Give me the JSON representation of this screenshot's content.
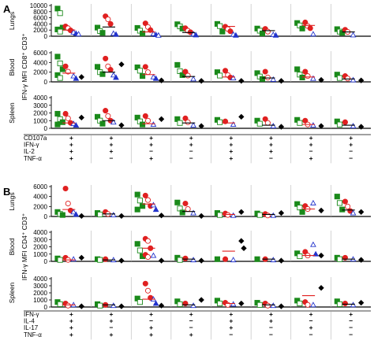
{
  "figure": {
    "panels": [
      {
        "letter": "A",
        "y_title": "IFN-γ MFI CD8⁺ CD3⁺",
        "rows": [
          {
            "label": "Lungs",
            "ylim": [
              0,
              10000
            ],
            "ticks": [
              "0",
              "2000",
              "4000",
              "6000",
              "8000",
              "10000"
            ]
          },
          {
            "label": "Blood",
            "ylim": [
              0,
              6000
            ],
            "ticks": [
              "0",
              "2000",
              "4000",
              "6000"
            ]
          },
          {
            "label": "Spleen",
            "ylim": [
              0,
              4000
            ],
            "ticks": [
              "0",
              "1000",
              "2000",
              "3000",
              "4000"
            ]
          }
        ],
        "marker_names": [
          "CD107a",
          "IFN-γ",
          "IL-2",
          "TNF-α"
        ],
        "signs": [
          [
            "+",
            "+",
            "+",
            "+",
            "+",
            "+",
            "+",
            "+"
          ],
          [
            "+",
            "+",
            "+",
            "+",
            "+",
            "+",
            "+",
            "+"
          ],
          [
            "+",
            "+",
            "−",
            "−",
            "+",
            "+",
            "−",
            "−"
          ],
          [
            "+",
            "−",
            "+",
            "−",
            "+",
            "−",
            "+",
            "−"
          ]
        ]
      },
      {
        "letter": "B",
        "y_title": "IFN-γ MFI CD4⁺ CD3⁺",
        "rows": [
          {
            "label": "Lungs",
            "ylim": [
              0,
              6000
            ],
            "ticks": [
              "0",
              "2000",
              "4000",
              "6000"
            ]
          },
          {
            "label": "Blood",
            "ylim": [
              0,
              4000
            ],
            "ticks": [
              "0",
              "1000",
              "2000",
              "3000",
              "4000"
            ]
          },
          {
            "label": "Spleen",
            "ylim": [
              0,
              4000
            ],
            "ticks": [
              "0",
              "1000",
              "2000",
              "3000",
              "4000"
            ]
          }
        ],
        "marker_names": [
          "IFN-γ",
          "IL-4",
          "IL-17",
          "TNF-α"
        ],
        "signs": [
          [
            "+",
            "+",
            "+",
            "+",
            "+",
            "+",
            "+",
            "+"
          ],
          [
            "+",
            "+",
            "−",
            "−",
            "+",
            "+",
            "−",
            "−"
          ],
          [
            "+",
            "−",
            "+",
            "−",
            "+",
            "−",
            "+",
            "−"
          ],
          [
            "+",
            "+",
            "+",
            "+",
            "−",
            "−",
            "−",
            "−"
          ]
        ]
      }
    ]
  },
  "colors": {
    "green": "#1a8a1a",
    "red": "#e02020",
    "blue": "#2233cc",
    "black": "#000000",
    "divider": "#b8b8b8",
    "mean_red": "#e02020",
    "mean_black": "#000000"
  },
  "chart_data": [
    {
      "type": "scatter",
      "panel": "A",
      "row": "Lungs",
      "ylim": [
        0,
        10000
      ],
      "groups": 8,
      "group_means": [
        2000,
        3000,
        1400,
        1200,
        3200,
        1800,
        3500,
        1400
      ],
      "values": [
        {
          "green": [
            9000,
            7500,
            2800,
            2200,
            1500
          ],
          "red": [
            3200,
            2600,
            1900
          ],
          "blue": [
            1300,
            900,
            700
          ]
        },
        {
          "green": [
            2800,
            1700,
            1100
          ],
          "red": [
            6500,
            5500,
            4000
          ],
          "blue": [
            900,
            600
          ]
        },
        {
          "green": [
            2700,
            1800,
            900
          ],
          "red": [
            4200,
            3000,
            2000
          ],
          "blue": [
            800,
            500,
            300
          ]
        },
        {
          "green": [
            3900,
            3200,
            2500
          ],
          "red": [
            2600,
            1800,
            1300
          ],
          "blue": [
            700,
            400
          ]
        },
        {
          "green": [
            4000,
            3300,
            1500
          ],
          "red": [
            3100,
            2300,
            1600
          ],
          "blue": [
            600,
            300
          ]
        },
        {
          "green": [
            2500,
            1800,
            900
          ],
          "red": [
            2400,
            1500
          ],
          "blue": [
            500,
            300
          ]
        },
        {
          "green": [
            4300,
            3500,
            2500
          ],
          "red": [
            4500,
            3300,
            2600
          ],
          "blue": [
            700
          ]
        },
        {
          "green": [
            2300,
            1500,
            1100
          ],
          "red": [
            2100,
            1400
          ],
          "blue": [
            400
          ]
        }
      ]
    },
    {
      "type": "scatter",
      "panel": "A",
      "row": "Blood",
      "ylim": [
        0,
        6000
      ],
      "groups": 8,
      "group_means": [
        1800,
        2000,
        1500,
        1100,
        1000,
        800,
        1000,
        600
      ],
      "values": [
        {
          "green": [
            5200,
            3800,
            2600,
            1400,
            800
          ],
          "red": [
            3200,
            2100
          ],
          "blue": [
            1200,
            700
          ],
          "black": [
            1000
          ]
        },
        {
          "green": [
            3100,
            2000,
            1600
          ],
          "red": [
            4800,
            3200,
            2500
          ],
          "blue": [
            1400,
            900
          ],
          "black": [
            3600
          ]
        },
        {
          "green": [
            3000,
            2300,
            1200
          ],
          "red": [
            3100,
            2000
          ],
          "blue": [
            1000,
            700
          ],
          "black": [
            300
          ]
        },
        {
          "green": [
            3500,
            2200,
            1400
          ],
          "red": [
            2100,
            1300
          ],
          "blue": [
            600
          ],
          "black": [
            200
          ]
        },
        {
          "green": [
            2000,
            1300
          ],
          "red": [
            2300,
            1400,
            900
          ],
          "blue": [
            800
          ],
          "black": [
            200
          ]
        },
        {
          "green": [
            1800,
            1100,
            600
          ],
          "red": [
            2100,
            900
          ],
          "blue": [
            500
          ],
          "black": [
            200
          ]
        },
        {
          "green": [
            2600,
            1500,
            900
          ],
          "red": [
            2100,
            1200
          ],
          "blue": [
            700
          ],
          "black": [
            400
          ]
        },
        {
          "green": [
            1500,
            800
          ],
          "red": [
            1200,
            700
          ],
          "blue": [
            400
          ],
          "black": [
            300
          ]
        }
      ]
    },
    {
      "type": "scatter",
      "panel": "A",
      "row": "Spleen",
      "ylim": [
        0,
        4000
      ],
      "groups": 8,
      "group_means": [
        700,
        1000,
        600,
        700,
        700,
        400,
        500,
        400
      ],
      "values": [
        {
          "green": [
            1900,
            1200,
            800,
            500
          ],
          "red": [
            1900,
            1300,
            700
          ],
          "blue": [
            600,
            400
          ],
          "black": [
            1400
          ]
        },
        {
          "green": [
            1500,
            1000,
            600
          ],
          "red": [
            2300,
            1600,
            1000
          ],
          "blue": [
            800
          ],
          "black": [
            400
          ]
        },
        {
          "green": [
            1400,
            900,
            500
          ],
          "red": [
            1600,
            1000
          ],
          "blue": [
            500
          ],
          "black": [
            1200
          ]
        },
        {
          "green": [
            1200,
            700
          ],
          "red": [
            1300,
            800
          ],
          "blue": [
            400
          ],
          "black": [
            300
          ]
        },
        {
          "green": [
            1100,
            800
          ],
          "red": [
            900
          ],
          "blue": [
            500
          ],
          "black": [
            1500
          ]
        },
        {
          "green": [
            1000,
            600
          ],
          "red": [
            1200,
            700
          ],
          "blue": [
            300
          ],
          "black": [
            200
          ]
        },
        {
          "green": [
            1100,
            700
          ],
          "red": [
            1000,
            500
          ],
          "blue": [
            400
          ],
          "black": [
            300
          ]
        },
        {
          "green": [
            900,
            500
          ],
          "red": [
            800
          ],
          "blue": [
            300
          ],
          "black": [
            200
          ]
        }
      ]
    },
    {
      "type": "scatter",
      "panel": "B",
      "row": "Lungs",
      "ylim": [
        0,
        6000
      ],
      "groups": 8,
      "group_means": [
        1400,
        500,
        2500,
        1000,
        400,
        400,
        1500,
        1300
      ],
      "values": [
        {
          "green": [
            900,
            500,
            300
          ],
          "red": [
            5600,
            2600,
            1200
          ],
          "blue": [
            900,
            400
          ],
          "black": [
            100
          ]
        },
        {
          "green": [
            700,
            400
          ],
          "red": [
            900,
            500
          ],
          "blue": [
            300
          ],
          "black": [
            100
          ]
        },
        {
          "green": [
            4400,
            3200,
            2100,
            1400
          ],
          "red": [
            4200,
            3300,
            2100
          ],
          "blue": [
            2300,
            1400
          ],
          "black": [
            200
          ]
        },
        {
          "green": [
            2800,
            1600,
            800
          ],
          "red": [
            2600,
            1500
          ],
          "blue": [
            700
          ],
          "black": [
            100
          ]
        },
        {
          "green": [
            700,
            300
          ],
          "red": [
            600,
            300
          ],
          "blue": [
            200
          ],
          "black": [
            900
          ]
        },
        {
          "green": [
            600,
            300
          ],
          "red": [
            500,
            200
          ],
          "blue": [
            200
          ],
          "black": [
            700
          ]
        },
        {
          "green": [
            2500,
            1800,
            900
          ],
          "red": [
            2100,
            1500
          ],
          "blue": [
            2700
          ],
          "black": [
            1200
          ]
        },
        {
          "green": [
            4000,
            2700,
            1400
          ],
          "red": [
            3000,
            2000,
            1100
          ],
          "blue": [
            700
          ],
          "black": [
            900
          ]
        }
      ]
    },
    {
      "type": "scatter",
      "panel": "B",
      "row": "Blood",
      "ylim": [
        0,
        4000
      ],
      "groups": 8,
      "group_means": [
        200,
        200,
        1800,
        300,
        1400,
        300,
        800,
        300
      ],
      "values": [
        {
          "green": [
            400,
            200
          ],
          "red": [
            500,
            200
          ],
          "blue": [
            300
          ],
          "black": [
            500
          ]
        },
        {
          "green": [
            300,
            200
          ],
          "red": [
            300
          ],
          "blue": [
            200
          ],
          "black": [
            100
          ]
        },
        {
          "green": [
            2400,
            1500,
            700
          ],
          "red": [
            3100,
            2800,
            1800,
            900,
            600
          ],
          "blue": [
            800
          ],
          "black": [
            100
          ]
        },
        {
          "green": [
            500,
            200
          ],
          "red": [
            400
          ],
          "blue": [
            200
          ],
          "black": [
            100
          ]
        },
        {
          "green": [
            300
          ],
          "red": [
            300
          ],
          "blue": [
            200
          ],
          "black": [
            2800,
            1800
          ]
        },
        {
          "green": [
            300
          ],
          "red": [
            300
          ],
          "blue": [
            200
          ],
          "black": [
            100
          ]
        },
        {
          "green": [
            1100,
            700
          ],
          "red": [
            1300,
            800
          ],
          "blue": [
            2300,
            1000
          ],
          "black": [
            800
          ]
        },
        {
          "green": [
            500,
            300
          ],
          "red": [
            500
          ],
          "blue": [
            300
          ],
          "black": [
            200
          ]
        }
      ]
    },
    {
      "type": "scatter",
      "panel": "B",
      "row": "Spleen",
      "ylim": [
        0,
        4000
      ],
      "groups": 8,
      "group_means": [
        300,
        300,
        1100,
        300,
        500,
        300,
        1600,
        400
      ],
      "values": [
        {
          "green": [
            700,
            400
          ],
          "red": [
            500,
            200
          ],
          "blue": [
            300
          ],
          "black": [
            100
          ]
        },
        {
          "green": [
            400,
            200
          ],
          "red": [
            300
          ],
          "blue": [
            200
          ],
          "black": [
            100
          ]
        },
        {
          "green": [
            1200,
            700
          ],
          "red": [
            3300,
            2300,
            1300
          ],
          "blue": [
            1100,
            500
          ],
          "black": [
            200
          ]
        },
        {
          "green": [
            800,
            400
          ],
          "red": [
            500
          ],
          "blue": [
            200
          ],
          "black": [
            1000
          ]
        },
        {
          "green": [
            900,
            500
          ],
          "red": [
            600,
            300
          ],
          "blue": [
            400
          ],
          "black": [
            500
          ]
        },
        {
          "green": [
            600,
            300
          ],
          "red": [
            500,
            200
          ],
          "blue": [
            200
          ],
          "black": [
            100
          ]
        },
        {
          "green": [
            900,
            500
          ],
          "red": [
            700,
            300
          ],
          "blue": [
            300
          ],
          "black": [
            2700
          ]
        },
        {
          "green": [
            800,
            400
          ],
          "red": [
            500
          ],
          "blue": [
            300
          ],
          "black": [
            600
          ]
        }
      ]
    }
  ]
}
